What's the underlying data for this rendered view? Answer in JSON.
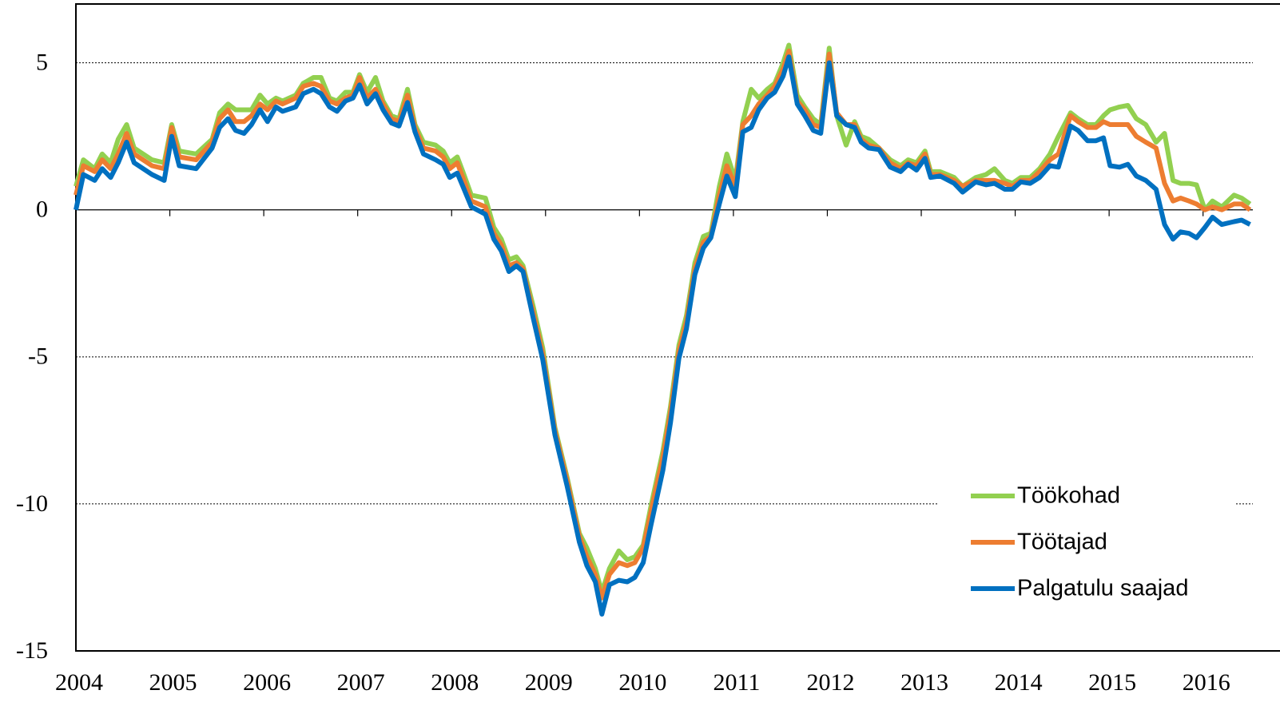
{
  "chart_data": {
    "type": "line",
    "x": [
      2004.0,
      2004.08,
      2004.2,
      2004.28,
      2004.37,
      2004.45,
      2004.54,
      2004.62,
      2004.81,
      2004.94,
      2005.02,
      2005.1,
      2005.28,
      2005.45,
      2005.53,
      2005.62,
      2005.7,
      2005.79,
      2005.87,
      2005.96,
      2006.04,
      2006.13,
      2006.2,
      2006.34,
      2006.42,
      2006.53,
      2006.61,
      2006.7,
      2006.78,
      2006.87,
      2006.95,
      2007.02,
      2007.1,
      2007.19,
      2007.27,
      2007.36,
      2007.44,
      2007.53,
      2007.61,
      2007.7,
      2007.83,
      2007.91,
      2007.98,
      2008.06,
      2008.12,
      2008.21,
      2008.36,
      2008.45,
      2008.53,
      2008.61,
      2008.69,
      2008.76,
      2008.87,
      2008.97,
      2009.1,
      2009.23,
      2009.36,
      2009.44,
      2009.53,
      2009.6,
      2009.68,
      2009.78,
      2009.87,
      2009.95,
      2010.04,
      2010.12,
      2010.25,
      2010.33,
      2010.42,
      2010.5,
      2010.59,
      2010.68,
      2010.76,
      2010.85,
      2010.93,
      2011.02,
      2011.1,
      2011.19,
      2011.27,
      2011.36,
      2011.44,
      2011.53,
      2011.59,
      2011.68,
      2011.76,
      2011.85,
      2011.93,
      2012.02,
      2012.1,
      2012.2,
      2012.29,
      2012.36,
      2012.44,
      2012.55,
      2012.67,
      2012.78,
      2012.86,
      2012.95,
      2013.04,
      2013.1,
      2013.2,
      2013.35,
      2013.44,
      2013.58,
      2013.69,
      2013.78,
      2013.89,
      2013.97,
      2014.06,
      2014.16,
      2014.26,
      2014.37,
      2014.46,
      2014.59,
      2014.67,
      2014.77,
      2014.86,
      2014.94,
      2015.01,
      2015.11,
      2015.2,
      2015.29,
      2015.39,
      2015.5,
      2015.59,
      2015.68,
      2015.76,
      2015.85,
      2015.93,
      2016.02,
      2016.1,
      2016.2,
      2016.33,
      2016.41,
      2016.5
    ],
    "series": [
      {
        "name": "Töökohad",
        "color": "#92d050",
        "values": [
          0.8,
          1.7,
          1.4,
          1.9,
          1.6,
          2.4,
          2.9,
          2.1,
          1.7,
          1.6,
          2.9,
          2.0,
          1.9,
          2.4,
          3.3,
          3.6,
          3.4,
          3.4,
          3.4,
          3.9,
          3.6,
          3.8,
          3.7,
          3.9,
          4.3,
          4.5,
          4.5,
          3.8,
          3.7,
          4.0,
          4.0,
          4.6,
          4.0,
          4.5,
          3.7,
          3.2,
          3.1,
          4.1,
          2.9,
          2.3,
          2.2,
          2.0,
          1.6,
          1.8,
          1.3,
          0.5,
          0.4,
          -0.6,
          -1.0,
          -1.7,
          -1.6,
          -1.9,
          -3.3,
          -4.7,
          -7.4,
          -9.1,
          -11.0,
          -11.5,
          -12.2,
          -13.0,
          -12.2,
          -11.6,
          -11.9,
          -11.8,
          -11.4,
          -10.1,
          -8.2,
          -6.7,
          -4.6,
          -3.6,
          -1.8,
          -0.9,
          -0.8,
          0.8,
          1.9,
          1.0,
          3.0,
          4.1,
          3.8,
          4.1,
          4.3,
          5.0,
          5.6,
          3.9,
          3.5,
          3.1,
          2.9,
          5.5,
          3.2,
          2.2,
          3.0,
          2.5,
          2.4,
          2.1,
          1.7,
          1.5,
          1.7,
          1.6,
          2.0,
          1.3,
          1.3,
          1.1,
          0.8,
          1.1,
          1.2,
          1.4,
          1.0,
          0.9,
          1.1,
          1.1,
          1.4,
          1.9,
          2.5,
          3.3,
          3.1,
          2.9,
          2.9,
          3.2,
          3.4,
          3.5,
          3.55,
          3.1,
          2.9,
          2.3,
          2.6,
          1.0,
          0.9,
          0.9,
          0.85,
          0.0,
          0.3,
          0.1,
          0.5,
          0.4,
          0.2
        ]
      },
      {
        "name": "Töötajad",
        "color": "#ed7d31",
        "values": [
          0.5,
          1.5,
          1.3,
          1.7,
          1.4,
          1.9,
          2.6,
          1.9,
          1.5,
          1.4,
          2.8,
          1.8,
          1.7,
          2.3,
          3.1,
          3.4,
          3.0,
          3.0,
          3.2,
          3.6,
          3.4,
          3.7,
          3.6,
          3.8,
          4.2,
          4.3,
          4.2,
          3.7,
          3.6,
          3.8,
          3.9,
          4.5,
          3.8,
          4.1,
          3.6,
          3.1,
          3.0,
          3.9,
          2.8,
          2.1,
          2.0,
          1.8,
          1.4,
          1.6,
          1.1,
          0.3,
          0.1,
          -0.8,
          -1.2,
          -1.9,
          -1.8,
          -2.0,
          -3.5,
          -4.9,
          -7.5,
          -9.2,
          -11.1,
          -11.8,
          -12.4,
          -13.2,
          -12.4,
          -12.0,
          -12.1,
          -12.0,
          -11.5,
          -10.3,
          -8.4,
          -6.9,
          -4.8,
          -3.8,
          -2.0,
          -1.1,
          -0.9,
          0.5,
          1.5,
          0.8,
          2.9,
          3.2,
          3.6,
          3.9,
          4.2,
          4.8,
          5.4,
          3.7,
          3.4,
          2.9,
          2.8,
          5.3,
          3.3,
          2.9,
          2.9,
          2.4,
          2.2,
          2.1,
          1.6,
          1.4,
          1.6,
          1.5,
          1.9,
          1.2,
          1.2,
          1.0,
          0.8,
          1.0,
          1.0,
          1.0,
          0.9,
          0.8,
          1.0,
          1.0,
          1.3,
          1.7,
          1.9,
          3.2,
          3.0,
          2.8,
          2.8,
          3.0,
          2.9,
          2.9,
          2.9,
          2.5,
          2.3,
          2.1,
          0.9,
          0.3,
          0.4,
          0.3,
          0.2,
          0.0,
          0.1,
          0.0,
          0.2,
          0.2,
          0.0
        ]
      },
      {
        "name": "Palgatulu saajad",
        "color": "#0070c0",
        "values": [
          0,
          1.2,
          1.0,
          1.4,
          1.1,
          1.6,
          2.3,
          1.6,
          1.2,
          1.0,
          2.5,
          1.5,
          1.4,
          2.1,
          2.8,
          3.1,
          2.7,
          2.6,
          2.9,
          3.4,
          3.0,
          3.5,
          3.35,
          3.5,
          3.95,
          4.1,
          3.95,
          3.5,
          3.35,
          3.7,
          3.8,
          4.25,
          3.6,
          3.95,
          3.4,
          2.95,
          2.85,
          3.65,
          2.65,
          1.9,
          1.7,
          1.55,
          1.1,
          1.25,
          0.8,
          0.1,
          -0.15,
          -1.0,
          -1.4,
          -2.1,
          -1.9,
          -2.1,
          -3.7,
          -5.1,
          -7.65,
          -9.4,
          -11.3,
          -12.1,
          -12.65,
          -13.75,
          -12.75,
          -12.6,
          -12.65,
          -12.5,
          -12.0,
          -10.75,
          -8.85,
          -7.25,
          -5.05,
          -4.05,
          -2.2,
          -1.3,
          -0.95,
          0.2,
          1.15,
          0.45,
          2.65,
          2.8,
          3.4,
          3.8,
          4.0,
          4.55,
          5.2,
          3.6,
          3.2,
          2.7,
          2.6,
          5.0,
          3.2,
          2.9,
          2.8,
          2.3,
          2.1,
          2.05,
          1.45,
          1.3,
          1.55,
          1.35,
          1.75,
          1.1,
          1.15,
          0.9,
          0.6,
          0.95,
          0.85,
          0.9,
          0.7,
          0.7,
          0.95,
          0.9,
          1.1,
          1.5,
          1.45,
          2.85,
          2.7,
          2.35,
          2.35,
          2.45,
          1.5,
          1.45,
          1.55,
          1.15,
          1.0,
          0.7,
          -0.5,
          -1.0,
          -0.75,
          -0.8,
          -0.95,
          -0.6,
          -0.25,
          -0.5,
          -0.4,
          -0.35,
          -0.5
        ]
      }
    ],
    "xlim": [
      2004,
      2016.53
    ],
    "xticks": [
      2004,
      2005,
      2006,
      2007,
      2008,
      2009,
      2010,
      2011,
      2012,
      2013,
      2014,
      2015,
      2016
    ],
    "ylim": [
      -15,
      7
    ],
    "yticks": [
      5,
      0,
      -5,
      -10,
      -15
    ],
    "grid": true,
    "legend": "lower right"
  }
}
